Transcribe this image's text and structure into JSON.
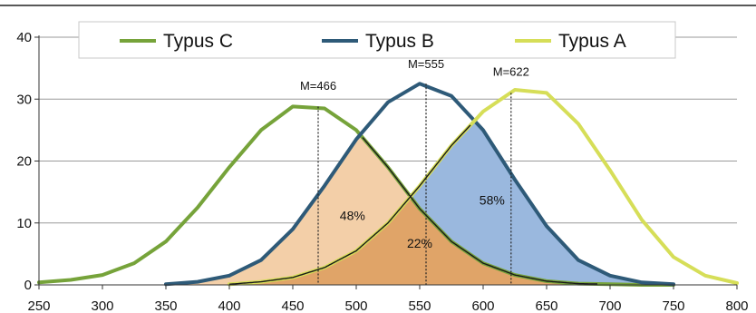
{
  "chart_data": {
    "type": "line",
    "x_ticks": [
      "250",
      "300",
      "350",
      "400",
      "450",
      "500",
      "550",
      "600",
      "650",
      "700",
      "750",
      "800"
    ],
    "y_ticks": [
      "0",
      "10",
      "20",
      "30",
      "40"
    ],
    "xlim": [
      250,
      800
    ],
    "ylim": [
      0,
      40
    ],
    "grid": true,
    "legend_position": "top",
    "series": [
      {
        "name": "Typus C",
        "color": "#76a33a",
        "x": [
          250,
          275,
          300,
          325,
          350,
          375,
          400,
          425,
          450,
          475,
          500,
          525,
          550,
          575,
          600,
          625,
          650,
          675,
          700,
          725,
          750
        ],
        "y": [
          0.4,
          0.8,
          1.6,
          3.5,
          7.0,
          12.5,
          19.0,
          25.0,
          28.8,
          28.5,
          25.0,
          19.0,
          12.3,
          7.0,
          3.5,
          1.6,
          0.6,
          0.2,
          0.1,
          0.0,
          0.0
        ]
      },
      {
        "name": "Typus B",
        "color": "#2e5a78",
        "x": [
          350,
          375,
          400,
          425,
          450,
          475,
          500,
          525,
          550,
          575,
          600,
          625,
          650,
          675,
          700,
          725,
          750
        ],
        "y": [
          0.1,
          0.5,
          1.5,
          4.0,
          9.0,
          16.0,
          23.5,
          29.5,
          32.5,
          30.5,
          25.0,
          17.0,
          9.5,
          4.0,
          1.5,
          0.4,
          0.1
        ]
      },
      {
        "name": "Typus A",
        "color": "#d6de58",
        "x": [
          400,
          425,
          450,
          475,
          500,
          525,
          550,
          575,
          600,
          625,
          650,
          675,
          700,
          725,
          750,
          775,
          800
        ],
        "y": [
          0.1,
          0.5,
          1.2,
          2.8,
          5.5,
          10.0,
          16.0,
          22.5,
          28.0,
          31.5,
          31.0,
          26.0,
          18.5,
          10.5,
          4.5,
          1.5,
          0.3
        ]
      }
    ],
    "means": [
      {
        "label": "M=466",
        "x": 470,
        "y_top": 28.8,
        "label_y": 31.5
      },
      {
        "label": "M=555",
        "x": 555,
        "y_top": 32.5,
        "label_y": 35.0
      },
      {
        "label": "M=622",
        "x": 622,
        "y_top": 31.0,
        "label_y": 33.8
      }
    ],
    "region_labels": [
      {
        "text": "48%",
        "x": 497,
        "y": 10.5
      },
      {
        "text": "22%",
        "x": 550,
        "y": 6.0
      },
      {
        "text": "58%",
        "x": 607,
        "y": 13.0
      }
    ],
    "colors": {
      "fill_48": "#f3cfa8",
      "fill_22": "#e0a468",
      "fill_58": "#9ab8de",
      "grid": "#9a9a9a",
      "legend_border": "#c8c8c8"
    }
  }
}
